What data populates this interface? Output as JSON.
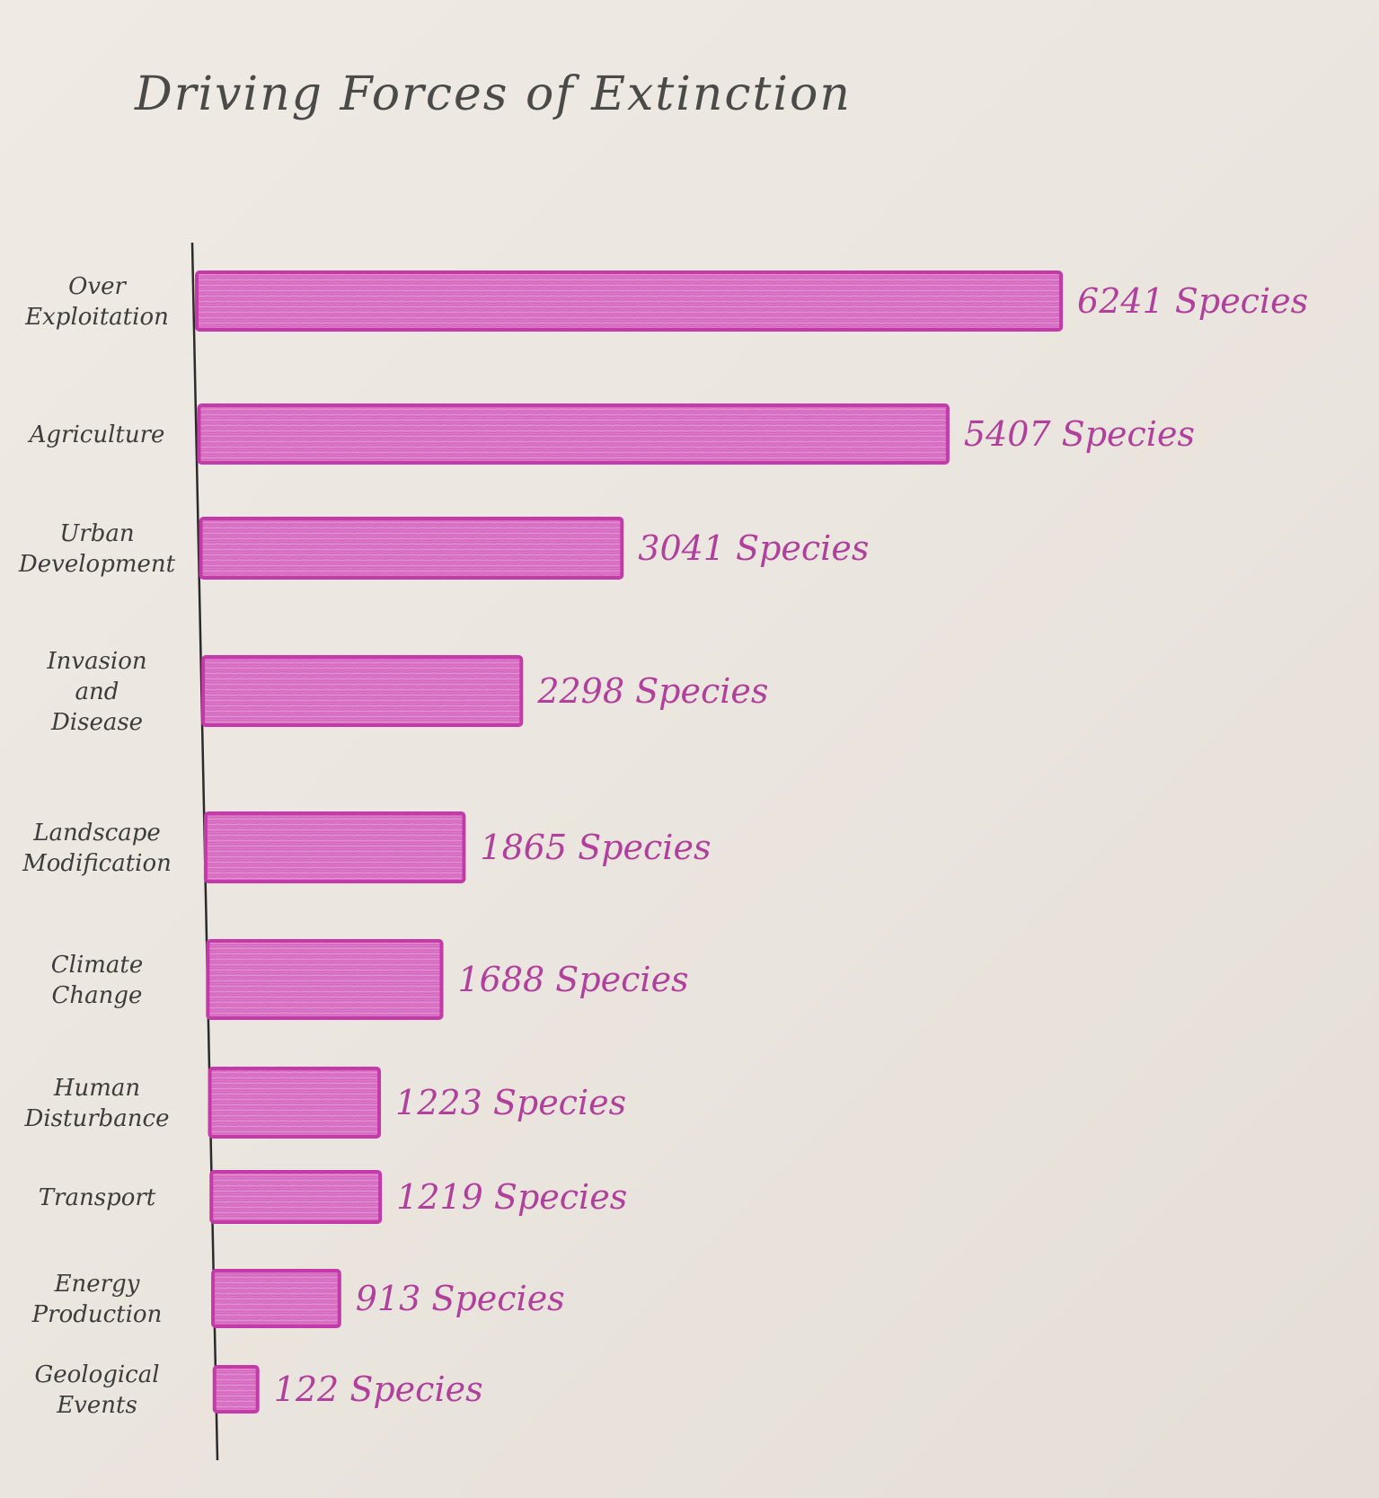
{
  "chart_data": {
    "type": "bar",
    "orientation": "horizontal",
    "title": "Driving Forces of Extinction",
    "xlabel": "",
    "ylabel": "",
    "categories": [
      [
        "Over",
        "Exploitation"
      ],
      [
        "Agriculture"
      ],
      [
        "Urban",
        "Development"
      ],
      [
        "Invasion",
        "and",
        "Disease"
      ],
      [
        "Landscape",
        "Modification"
      ],
      [
        "Climate",
        "Change"
      ],
      [
        "Human",
        "Disturbance"
      ],
      [
        "Transport"
      ],
      [
        "Energy",
        "Production"
      ],
      [
        "Geological",
        "Events"
      ]
    ],
    "values": [
      6241,
      5407,
      3041,
      2298,
      1865,
      1688,
      1223,
      1219,
      913,
      122
    ],
    "value_labels": [
      "6241 Species",
      "5407 Species",
      "3041 Species",
      "2298 Species",
      "1865 Species",
      "1688 Species",
      "1223 Species",
      "1219 Species",
      "913 Species",
      "122 Species"
    ],
    "xlim": [
      0,
      6241
    ],
    "grid": false,
    "legend": "none",
    "bar_color": "#d65dbd",
    "bar_outline_color": "#c43aa8",
    "label_color": "#b0409c",
    "axis_color": "#2b2b2b"
  }
}
